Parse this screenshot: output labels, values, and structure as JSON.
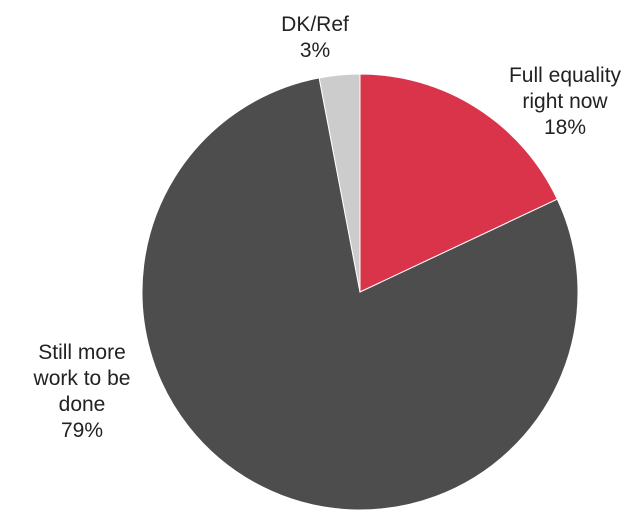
{
  "chart_data": {
    "type": "pie",
    "title": "",
    "slices": [
      {
        "label_lines": [
          "Full equality",
          "right now"
        ],
        "value": 18,
        "value_text": "18%",
        "color": "#d9344a"
      },
      {
        "label_lines": [
          "Still more",
          "work to be",
          "done"
        ],
        "value": 79,
        "value_text": "79%",
        "color": "#4d4d4d"
      },
      {
        "label_lines": [
          "DK/Ref"
        ],
        "value": 3,
        "value_text": "3%",
        "color": "#cccccc"
      }
    ],
    "start_angle": "12 o'clock",
    "direction": "clockwise",
    "legend": "none"
  }
}
